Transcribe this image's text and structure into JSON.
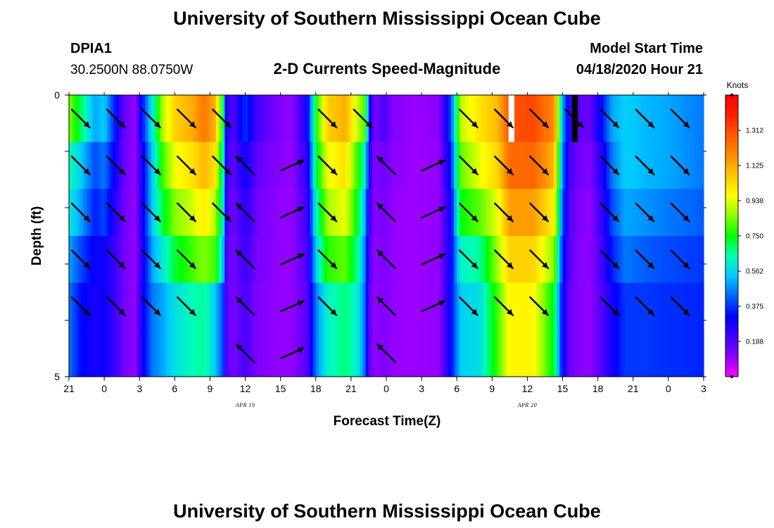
{
  "header": {
    "title_top": "University of Southern Mississippi Ocean Cube",
    "title_bottom": "University of Southern Mississippi Ocean Cube",
    "station": "DPIA1",
    "coords": "30.2500N 88.0750W",
    "subtitle": "2-D Currents Speed-Magnitude",
    "model_label": "Model Start Time",
    "model_time": "04/18/2020 Hour 21"
  },
  "chart_data": {
    "type": "heatmap",
    "title": "2-D Currents Speed-Magnitude",
    "xlabel": "Forecast Time(Z)",
    "ylabel": "Depth (ft)",
    "xlim": [
      0,
      54
    ],
    "ylim": [
      0,
      5
    ],
    "x_ticks": [
      {
        "hour": 0,
        "label": "21"
      },
      {
        "hour": 3,
        "label": "0"
      },
      {
        "hour": 6,
        "label": "3"
      },
      {
        "hour": 9,
        "label": "6"
      },
      {
        "hour": 12,
        "label": "9"
      },
      {
        "hour": 15,
        "label": "12"
      },
      {
        "hour": 18,
        "label": "15"
      },
      {
        "hour": 21,
        "label": "18"
      },
      {
        "hour": 24,
        "label": "21"
      },
      {
        "hour": 27,
        "label": "0"
      },
      {
        "hour": 30,
        "label": "3"
      },
      {
        "hour": 33,
        "label": "6"
      },
      {
        "hour": 36,
        "label": "9"
      },
      {
        "hour": 39,
        "label": "12"
      },
      {
        "hour": 42,
        "label": "15"
      },
      {
        "hour": 45,
        "label": "18"
      },
      {
        "hour": 48,
        "label": "21"
      },
      {
        "hour": 51,
        "label": "0"
      },
      {
        "hour": 54,
        "label": "3"
      }
    ],
    "date_labels": [
      {
        "hour": 15,
        "label": "APR 19"
      },
      {
        "hour": 39,
        "label": "APR 20"
      }
    ],
    "y_ticks": [
      {
        "depth": 0,
        "label": "0"
      },
      {
        "depth": 5,
        "label": "5"
      }
    ],
    "depth_layers": 5,
    "speed_keyframes_knots": [
      {
        "h": 0.0,
        "v": [
          0.85,
          0.65,
          0.6,
          0.5,
          0.45
        ]
      },
      {
        "h": 1.0,
        "v": [
          0.7,
          0.55,
          0.5,
          0.4,
          0.33
        ]
      },
      {
        "h": 2.2,
        "v": [
          0.5,
          0.4,
          0.35,
          0.3,
          0.28
        ]
      },
      {
        "h": 3.0,
        "v": [
          0.55,
          0.45,
          0.4,
          0.3,
          0.3
        ]
      },
      {
        "h": 3.9,
        "v": [
          0.35,
          0.3,
          0.25,
          0.22,
          0.22
        ]
      },
      {
        "h": 4.6,
        "v": [
          0.17,
          0.16,
          0.15,
          0.15,
          0.15
        ]
      },
      {
        "h": 5.6,
        "v": [
          0.09,
          0.09,
          0.09,
          0.09,
          0.09
        ]
      },
      {
        "h": 6.3,
        "v": [
          0.35,
          0.3,
          0.3,
          0.28,
          0.3
        ]
      },
      {
        "h": 7.1,
        "v": [
          0.6,
          0.55,
          0.55,
          0.5,
          0.45
        ]
      },
      {
        "h": 8.0,
        "v": [
          0.9,
          0.8,
          0.72,
          0.6,
          0.5
        ]
      },
      {
        "h": 9.0,
        "v": [
          1.05,
          0.95,
          0.85,
          0.72,
          0.58
        ]
      },
      {
        "h": 10.5,
        "v": [
          1.12,
          1.02,
          0.92,
          0.8,
          0.64
        ]
      },
      {
        "h": 11.5,
        "v": [
          1.22,
          1.1,
          1.0,
          0.85,
          0.66
        ]
      },
      {
        "h": 12.4,
        "v": [
          1.12,
          1.02,
          0.9,
          0.8,
          0.55
        ]
      },
      {
        "h": 13.1,
        "v": [
          0.72,
          0.65,
          0.62,
          0.55,
          0.4
        ]
      },
      {
        "h": 13.4,
        "v": [
          0.25,
          0.22,
          0.2,
          0.18,
          0.18
        ]
      },
      {
        "h": 14.0,
        "v": [
          0.18,
          0.16,
          0.14,
          0.13,
          0.13
        ]
      },
      {
        "h": 15.0,
        "v": [
          0.38,
          0.3,
          0.25,
          0.22,
          0.2
        ]
      },
      {
        "h": 16.0,
        "v": [
          0.2,
          0.16,
          0.14,
          0.13,
          0.12
        ]
      },
      {
        "h": 18.0,
        "v": [
          0.12,
          0.11,
          0.1,
          0.1,
          0.1
        ]
      },
      {
        "h": 19.0,
        "v": [
          0.1,
          0.1,
          0.1,
          0.1,
          0.1
        ]
      },
      {
        "h": 20.3,
        "v": [
          0.3,
          0.25,
          0.22,
          0.2,
          0.18
        ]
      },
      {
        "h": 21.0,
        "v": [
          0.75,
          0.7,
          0.62,
          0.55,
          0.45
        ]
      },
      {
        "h": 22.0,
        "v": [
          1.05,
          0.95,
          0.88,
          0.78,
          0.62
        ]
      },
      {
        "h": 23.5,
        "v": [
          1.12,
          1.02,
          0.95,
          0.82,
          0.68
        ]
      },
      {
        "h": 24.6,
        "v": [
          0.9,
          0.78,
          0.72,
          0.66,
          0.6
        ]
      },
      {
        "h": 25.2,
        "v": [
          0.8,
          0.6,
          0.5,
          0.45,
          0.42
        ]
      },
      {
        "h": 25.6,
        "v": [
          0.32,
          0.25,
          0.2,
          0.18,
          0.15
        ]
      },
      {
        "h": 26.0,
        "v": [
          0.12,
          0.11,
          0.11,
          0.1,
          0.1
        ]
      },
      {
        "h": 26.8,
        "v": [
          0.2,
          0.15,
          0.14,
          0.13,
          0.12
        ]
      },
      {
        "h": 27.5,
        "v": [
          0.12,
          0.11,
          0.1,
          0.1,
          0.1
        ]
      },
      {
        "h": 29.5,
        "v": [
          0.09,
          0.09,
          0.09,
          0.09,
          0.09
        ]
      },
      {
        "h": 31.5,
        "v": [
          0.11,
          0.1,
          0.1,
          0.1,
          0.1
        ]
      },
      {
        "h": 32.5,
        "v": [
          0.4,
          0.35,
          0.3,
          0.3,
          0.32
        ]
      },
      {
        "h": 33.3,
        "v": [
          0.9,
          0.82,
          0.75,
          0.62,
          0.55
        ]
      },
      {
        "h": 35.0,
        "v": [
          1.02,
          0.95,
          0.82,
          0.66,
          0.58
        ]
      },
      {
        "h": 36.5,
        "v": [
          1.1,
          1.05,
          0.95,
          0.88,
          0.8
        ]
      },
      {
        "h": 37.5,
        "v": [
          1.3,
          1.25,
          1.15,
          1.05,
          0.98
        ]
      },
      {
        "h": 39.5,
        "v": [
          1.32,
          1.26,
          1.15,
          1.05,
          0.98
        ]
      },
      {
        "h": 41.3,
        "v": [
          1.18,
          1.1,
          0.98,
          0.85,
          0.72
        ]
      },
      {
        "h": 42.0,
        "v": [
          0.5,
          0.45,
          0.4,
          0.35,
          0.3
        ]
      },
      {
        "h": 42.6,
        "v": [
          0.25,
          0.2,
          0.18,
          0.17,
          0.16
        ]
      },
      {
        "h": 43.3,
        "v": [
          0.17,
          0.15,
          0.13,
          0.12,
          0.12
        ]
      },
      {
        "h": 44.3,
        "v": [
          0.15,
          0.12,
          0.1,
          0.1,
          0.1
        ]
      },
      {
        "h": 45.3,
        "v": [
          0.32,
          0.25,
          0.22,
          0.2,
          0.18
        ]
      },
      {
        "h": 46.2,
        "v": [
          0.5,
          0.45,
          0.4,
          0.35,
          0.28
        ]
      },
      {
        "h": 47.3,
        "v": [
          0.55,
          0.55,
          0.5,
          0.45,
          0.38
        ]
      },
      {
        "h": 49.0,
        "v": [
          0.52,
          0.52,
          0.48,
          0.42,
          0.38
        ]
      },
      {
        "h": 51.0,
        "v": [
          0.5,
          0.5,
          0.45,
          0.4,
          0.37
        ]
      },
      {
        "h": 54.0,
        "v": [
          0.45,
          0.45,
          0.42,
          0.38,
          0.36
        ]
      }
    ],
    "special_cells": [
      {
        "h_start": 37.4,
        "h_end": 37.9,
        "row": 0,
        "kind": "max",
        "color": "#ffffff"
      },
      {
        "h_start": 42.8,
        "h_end": 43.3,
        "row": 0,
        "kind": "min",
        "color": "#000000"
      }
    ],
    "arrow_columns": [
      {
        "hour": 1,
        "dir": "SE",
        "rows": [
          0,
          1,
          2,
          3,
          4
        ]
      },
      {
        "hour": 4,
        "dir": "SE",
        "rows": [
          0,
          1,
          2,
          3,
          4
        ]
      },
      {
        "hour": 7,
        "dir": "SE",
        "rows": [
          0,
          1,
          2,
          3,
          4
        ]
      },
      {
        "hour": 10,
        "dir": "SE",
        "rows": [
          0,
          1,
          2,
          3,
          4
        ]
      },
      {
        "hour": 13,
        "dir": "SE",
        "rows": [
          0,
          1,
          2
        ]
      },
      {
        "hour": 15,
        "dir": "NW",
        "rows": [
          1,
          2,
          3,
          4,
          5
        ]
      },
      {
        "hour": 19,
        "dir": "NE",
        "rows": [
          1,
          2,
          3,
          4,
          5
        ]
      },
      {
        "hour": 22,
        "dir": "SE",
        "rows": [
          0,
          1,
          2,
          3,
          4
        ]
      },
      {
        "hour": 25,
        "dir": "SE",
        "rows": [
          0
        ]
      },
      {
        "hour": 27,
        "dir": "NW",
        "rows": [
          1,
          2,
          3,
          4,
          5
        ]
      },
      {
        "hour": 31,
        "dir": "NE",
        "rows": [
          1,
          2,
          3,
          4
        ]
      },
      {
        "hour": 34,
        "dir": "SE",
        "rows": [
          0,
          1,
          2,
          3,
          4
        ]
      },
      {
        "hour": 37,
        "dir": "SE",
        "rows": [
          0,
          1,
          2,
          3,
          4
        ]
      },
      {
        "hour": 40,
        "dir": "SE",
        "rows": [
          0,
          1,
          2,
          3,
          4
        ]
      },
      {
        "hour": 43,
        "dir": "SE",
        "rows": [
          0
        ]
      },
      {
        "hour": 46,
        "dir": "SE",
        "rows": [
          0,
          1,
          2,
          3,
          4
        ]
      },
      {
        "hour": 49,
        "dir": "SE",
        "rows": [
          0,
          1,
          2,
          3,
          4
        ]
      },
      {
        "hour": 52,
        "dir": "SE",
        "rows": [
          0,
          1,
          2,
          3,
          4
        ]
      }
    ]
  },
  "colorbar": {
    "unit": "Knots",
    "min": 0,
    "max": 1.5,
    "labels": [
      "0.188",
      "0.375",
      "0.562",
      "0.750",
      "0.938",
      "1.125",
      "1.312"
    ],
    "colors": [
      "#ff00ff",
      "#8a00ff",
      "#3c00ff",
      "#0000ff",
      "#0064ff",
      "#00c8ff",
      "#00ffb4",
      "#00ff00",
      "#8cff00",
      "#ffff00",
      "#ffc800",
      "#ff8c00",
      "#ff5a00",
      "#ff2000",
      "#ff0000"
    ]
  }
}
